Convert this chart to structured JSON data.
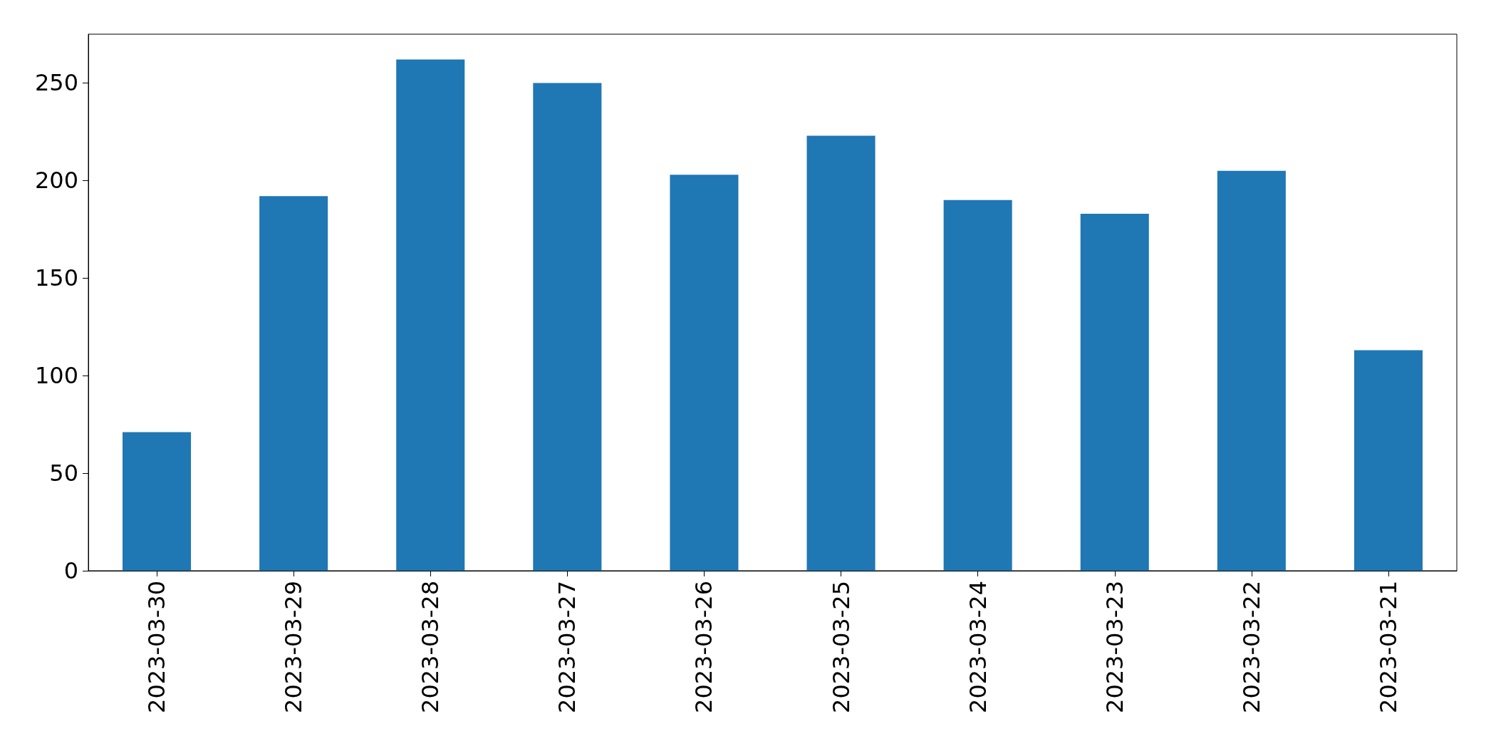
{
  "chart_data": {
    "type": "bar",
    "categories": [
      "2023-03-30",
      "2023-03-29",
      "2023-03-28",
      "2023-03-27",
      "2023-03-26",
      "2023-03-25",
      "2023-03-24",
      "2023-03-23",
      "2023-03-22",
      "2023-03-21"
    ],
    "values": [
      71,
      192,
      262,
      250,
      203,
      223,
      190,
      183,
      205,
      113
    ],
    "color": "#1f77b4",
    "ylim": [
      0,
      275
    ],
    "yticks": [
      0,
      50,
      100,
      150,
      200,
      250
    ],
    "grid": false
  }
}
